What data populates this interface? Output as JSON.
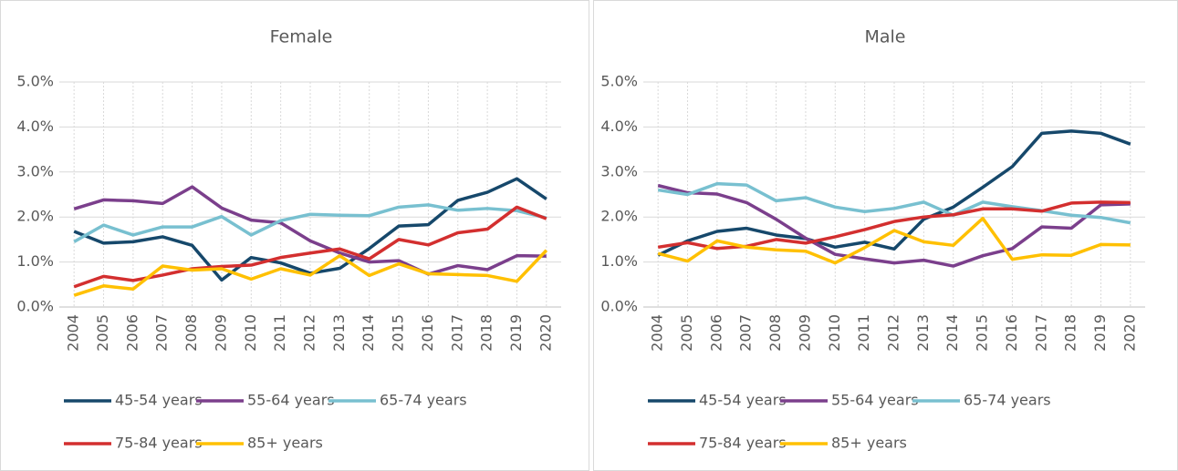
{
  "chart_data": [
    {
      "type": "line",
      "title": "Female",
      "categories": [
        "2004",
        "2005",
        "2006",
        "2007",
        "2008",
        "2009",
        "2010",
        "2011",
        "2012",
        "2013",
        "2014",
        "2015",
        "2016",
        "2017",
        "2018",
        "2019",
        "2020"
      ],
      "ylim": [
        0,
        5
      ],
      "yticks": [
        {
          "value": 0,
          "label": "0.0%"
        },
        {
          "value": 1,
          "label": "1.0%"
        },
        {
          "value": 2,
          "label": "2.0%"
        },
        {
          "value": 3,
          "label": "3.0%"
        },
        {
          "value": 4,
          "label": "4.0%"
        },
        {
          "value": 5,
          "label": "5.0%"
        }
      ],
      "grid": true,
      "legend": "bottom",
      "series": [
        {
          "name": "45-54 years",
          "color": "#16486b",
          "values": [
            1.68,
            1.42,
            1.45,
            1.56,
            1.37,
            0.6,
            1.1,
            0.98,
            0.75,
            0.86,
            1.3,
            1.8,
            1.83,
            2.37,
            2.55,
            2.85,
            2.4
          ]
        },
        {
          "name": "55-64 years",
          "color": "#7b3f8c",
          "values": [
            2.18,
            2.38,
            2.36,
            2.3,
            2.67,
            2.2,
            1.93,
            1.87,
            1.47,
            1.2,
            1.0,
            1.03,
            0.73,
            0.92,
            0.83,
            1.14,
            1.13
          ]
        },
        {
          "name": "65-74 years",
          "color": "#78c0d0",
          "values": [
            1.45,
            1.82,
            1.6,
            1.78,
            1.78,
            2.01,
            1.6,
            1.92,
            2.06,
            2.04,
            2.03,
            2.22,
            2.27,
            2.15,
            2.19,
            2.14,
            1.98
          ]
        },
        {
          "name": "75-84 years",
          "color": "#d32f2f",
          "values": [
            0.45,
            0.68,
            0.59,
            0.71,
            0.85,
            0.9,
            0.93,
            1.1,
            1.2,
            1.29,
            1.07,
            1.5,
            1.38,
            1.65,
            1.73,
            2.22,
            1.96
          ]
        },
        {
          "name": "85+ years",
          "color": "#ffc000",
          "values": [
            0.26,
            0.47,
            0.4,
            0.91,
            0.82,
            0.85,
            0.62,
            0.85,
            0.71,
            1.14,
            0.7,
            0.96,
            0.74,
            0.72,
            0.7,
            0.57,
            1.26
          ]
        }
      ]
    },
    {
      "type": "line",
      "title": "Male",
      "categories": [
        "2004",
        "2005",
        "2006",
        "2007",
        "2008",
        "2009",
        "2010",
        "2011",
        "2012",
        "2013",
        "2014",
        "2015",
        "2016",
        "2017",
        "2018",
        "2019",
        "2020"
      ],
      "ylim": [
        0,
        5
      ],
      "yticks": [
        {
          "value": 0,
          "label": "0.0%"
        },
        {
          "value": 1,
          "label": "1.0%"
        },
        {
          "value": 2,
          "label": "2.0%"
        },
        {
          "value": 3,
          "label": "3.0%"
        },
        {
          "value": 4,
          "label": "4.0%"
        },
        {
          "value": 5,
          "label": "5.0%"
        }
      ],
      "grid": true,
      "legend": "bottom",
      "series": [
        {
          "name": "45-54 years",
          "color": "#16486b",
          "values": [
            1.15,
            1.47,
            1.68,
            1.75,
            1.6,
            1.52,
            1.33,
            1.44,
            1.29,
            1.95,
            2.22,
            2.66,
            3.12,
            3.86,
            3.91,
            3.86,
            3.62
          ]
        },
        {
          "name": "55-64 years",
          "color": "#7b3f8c",
          "values": [
            2.7,
            2.54,
            2.51,
            2.32,
            1.95,
            1.53,
            1.17,
            1.07,
            0.98,
            1.04,
            0.91,
            1.14,
            1.3,
            1.78,
            1.75,
            2.27,
            2.29
          ]
        },
        {
          "name": "65-74 years",
          "color": "#78c0d0",
          "values": [
            2.6,
            2.5,
            2.74,
            2.71,
            2.36,
            2.43,
            2.22,
            2.12,
            2.19,
            2.33,
            2.04,
            2.33,
            2.23,
            2.14,
            2.04,
            1.99,
            1.87
          ]
        },
        {
          "name": "75-84 years",
          "color": "#d32f2f",
          "values": [
            1.33,
            1.43,
            1.3,
            1.35,
            1.5,
            1.42,
            1.56,
            1.72,
            1.9,
            2.0,
            2.05,
            2.18,
            2.18,
            2.13,
            2.31,
            2.33,
            2.32
          ]
        },
        {
          "name": "85+ years",
          "color": "#ffc000",
          "values": [
            1.19,
            1.02,
            1.47,
            1.33,
            1.27,
            1.24,
            0.98,
            1.32,
            1.7,
            1.45,
            1.37,
            1.97,
            1.06,
            1.16,
            1.15,
            1.39,
            1.38
          ]
        }
      ]
    }
  ]
}
